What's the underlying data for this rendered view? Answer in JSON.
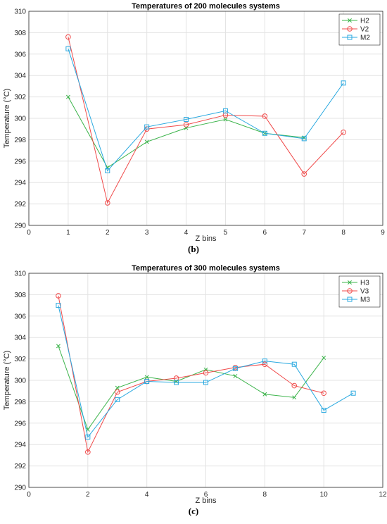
{
  "chart_data": [
    {
      "type": "line",
      "title": "Temperatures of 200 molecules systems",
      "xlabel": "Z bins",
      "ylabel": "Temperature  (°C)",
      "xlim": [
        0,
        9
      ],
      "ylim": [
        290,
        310
      ],
      "xticks": [
        0,
        1,
        2,
        3,
        4,
        5,
        6,
        7,
        8,
        9
      ],
      "yticks": [
        290,
        292,
        294,
        296,
        298,
        300,
        302,
        304,
        306,
        308,
        310
      ],
      "grid": true,
      "legend_position": "top-right",
      "caption": "(b)",
      "series": [
        {
          "name": "H2",
          "color": "#3cb44b",
          "marker": "x",
          "x": [
            1,
            2,
            3,
            4,
            5,
            6,
            7
          ],
          "y": [
            302.0,
            295.4,
            297.8,
            299.1,
            299.9,
            298.6,
            298.2
          ]
        },
        {
          "name": "V2",
          "color": "#f04a4a",
          "marker": "circle",
          "x": [
            1,
            2,
            3,
            4,
            5,
            6,
            7,
            8
          ],
          "y": [
            307.6,
            292.1,
            299.0,
            299.4,
            300.3,
            300.2,
            294.8,
            298.7
          ]
        },
        {
          "name": "M2",
          "color": "#2aa9e0",
          "marker": "square",
          "x": [
            1,
            2,
            3,
            4,
            5,
            6,
            7,
            8
          ],
          "y": [
            306.5,
            295.1,
            299.2,
            299.9,
            300.7,
            298.6,
            298.1,
            303.3
          ]
        }
      ]
    },
    {
      "type": "line",
      "title": "Temperatures of 300 molecules systems",
      "xlabel": "Z bins",
      "ylabel": "Temperature  (°C)",
      "xlim": [
        0,
        12
      ],
      "ylim": [
        290,
        310
      ],
      "xticks": [
        0,
        2,
        4,
        6,
        8,
        10,
        12
      ],
      "yticks": [
        290,
        292,
        294,
        296,
        298,
        300,
        302,
        304,
        306,
        308,
        310
      ],
      "grid": true,
      "legend_position": "top-right",
      "caption": "(c)",
      "series": [
        {
          "name": "H3",
          "color": "#3cb44b",
          "marker": "x",
          "x": [
            1,
            2,
            3,
            4,
            5,
            6,
            7,
            8,
            9,
            10
          ],
          "y": [
            303.2,
            295.4,
            299.3,
            300.3,
            299.9,
            301.0,
            300.4,
            298.7,
            298.4,
            302.1
          ]
        },
        {
          "name": "V3",
          "color": "#f04a4a",
          "marker": "circle",
          "x": [
            1,
            2,
            3,
            4,
            5,
            6,
            7,
            8,
            9,
            10
          ],
          "y": [
            307.9,
            293.3,
            298.9,
            299.9,
            300.2,
            300.7,
            301.2,
            301.5,
            299.5,
            298.8
          ]
        },
        {
          "name": "M3",
          "color": "#2aa9e0",
          "marker": "square",
          "x": [
            1,
            2,
            3,
            4,
            5,
            6,
            7,
            8,
            9,
            10,
            11
          ],
          "y": [
            307.0,
            294.7,
            298.2,
            299.9,
            299.8,
            299.8,
            301.1,
            301.8,
            301.5,
            297.2,
            298.8
          ]
        }
      ]
    }
  ]
}
